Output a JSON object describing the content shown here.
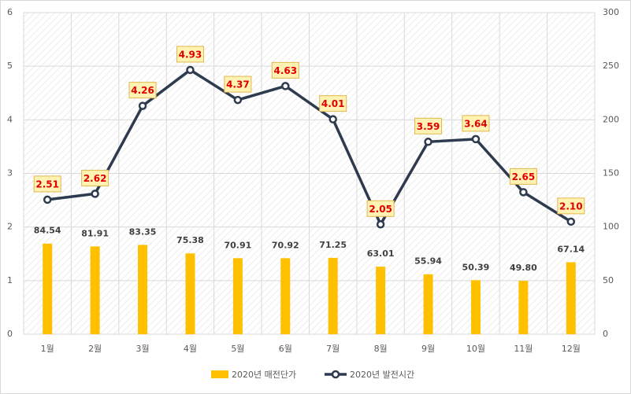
{
  "chart_data": {
    "type": "bar-line",
    "categories": [
      "1월",
      "2월",
      "3월",
      "4월",
      "5월",
      "6월",
      "7월",
      "8월",
      "9월",
      "10월",
      "11월",
      "12월"
    ],
    "series": [
      {
        "name": "2020년 매전단가",
        "type": "bar",
        "axis": "y2",
        "color": "#ffc000",
        "values": [
          84.54,
          81.91,
          83.35,
          75.38,
          70.91,
          70.92,
          71.25,
          63.01,
          55.94,
          50.39,
          49.8,
          67.14
        ],
        "value_labels": [
          "84.54",
          "81.91",
          "83.35",
          "75.38",
          "70.91",
          "70.92",
          "71.25",
          "63.01",
          "55.94",
          "50.39",
          "49.80",
          "67.14"
        ]
      },
      {
        "name": "2020년 발전시간",
        "type": "line",
        "axis": "y",
        "color": "#2e3b4e",
        "values": [
          2.51,
          2.62,
          4.26,
          4.93,
          4.37,
          4.63,
          4.01,
          2.05,
          3.59,
          3.64,
          2.65,
          2.1
        ],
        "value_labels": [
          "2.51",
          "2.62",
          "4.26",
          "4.93",
          "4.37",
          "4.63",
          "4.01",
          "2.05",
          "3.59",
          "3.64",
          "2.65",
          "2.10"
        ]
      }
    ],
    "ylim": [
      0,
      6
    ],
    "yticks": [
      0,
      1,
      2,
      3,
      4,
      5,
      6
    ],
    "y2lim": [
      0,
      300
    ],
    "y2ticks": [
      0,
      50,
      100,
      150,
      200,
      250,
      300
    ],
    "grid": true,
    "legend": "bottom"
  }
}
